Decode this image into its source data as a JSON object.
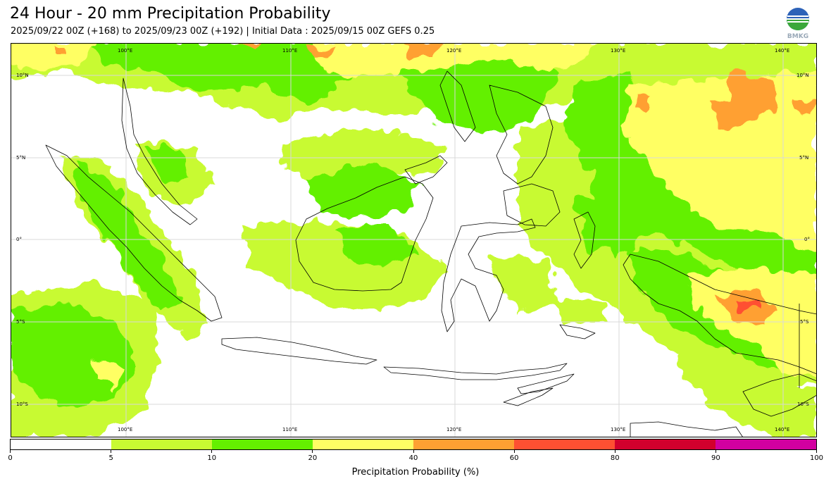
{
  "header": {
    "title": "24 Hour - 20 mm Precipitation Probability",
    "subtitle": "2025/09/22 00Z (+168) to 2025/09/23 00Z (+192) | Initial Data : 2025/09/15 00Z GEFS 0.25"
  },
  "logo": {
    "text": "BMKG",
    "icon": "bmkg-logo"
  },
  "map": {
    "region": "Indonesia",
    "lon_labels": [
      "100°E",
      "110°E",
      "120°E",
      "130°E",
      "140°E"
    ],
    "lat_labels": [
      "10°N",
      "5°N",
      "0°",
      "5°S",
      "10°S"
    ],
    "lon_range": [
      93.5,
      142.5
    ],
    "lat_range": [
      -12,
      12
    ],
    "colors": {
      "0-5": "#ffffff",
      "5-10": "#c8fa32",
      "10-20": "#64f000",
      "20-40": "#ffff64",
      "40-60": "#ffa032",
      "60-80": "#ff5032",
      "80-90": "#d2002d",
      "90-100": "#d200a0"
    }
  },
  "colorbar": {
    "label": "Precipitation Probability (%)",
    "ticks": [
      "0",
      "5",
      "10",
      "20",
      "40",
      "60",
      "80",
      "90",
      "100"
    ],
    "colors": [
      "#ffffff",
      "#c8fa32",
      "#64f000",
      "#ffff64",
      "#ffa032",
      "#ff5032",
      "#d2002d",
      "#d200a0"
    ]
  }
}
